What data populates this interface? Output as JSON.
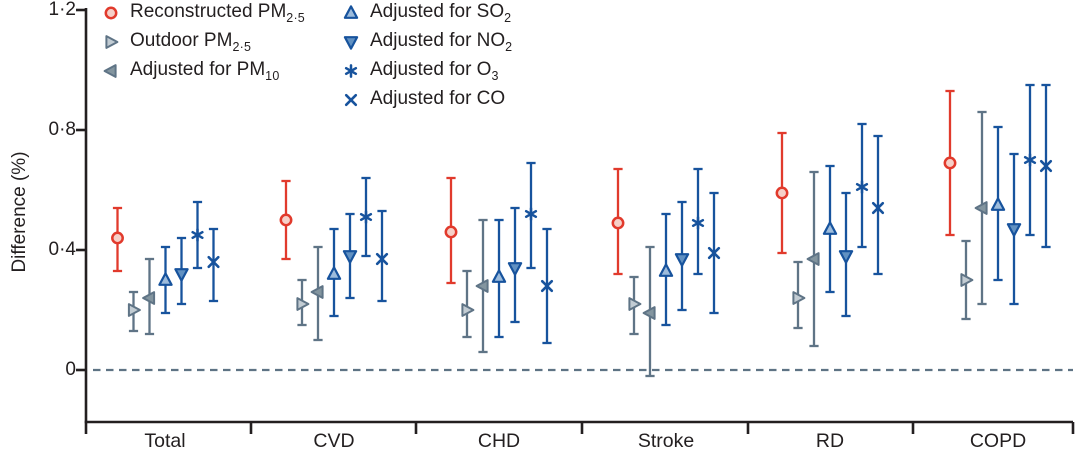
{
  "chart_data": {
    "type": "scatter",
    "subtype": "point-estimates-with-error-bars",
    "title": "",
    "ylabel": "Difference (%)",
    "xlabel": "",
    "ylim": [
      -0.17,
      1.2
    ],
    "grid": "off",
    "legend_position": "top-left-two-columns",
    "zero_line": {
      "value": 0,
      "style": "dashed",
      "color": "#5e7384"
    },
    "axis_color": "#231f20",
    "categories": [
      "Total",
      "CVD",
      "CHD",
      "Stroke",
      "RD",
      "COPD"
    ],
    "yticks": [
      {
        "label": "0",
        "value": 0
      },
      {
        "label": "0·4",
        "value": 0.4
      },
      {
        "label": "0·8",
        "value": 0.8
      },
      {
        "label": "1·2",
        "value": 1.2
      }
    ],
    "series": [
      {
        "name": "Reconstructed PM2·5",
        "label_main": "Reconstructed PM",
        "label_sub": "2·5",
        "marker": "circle-open",
        "color": "#e13a2c",
        "fill": "#f6d0c8",
        "values": [
          0.44,
          0.5,
          0.46,
          0.49,
          0.59,
          0.69
        ],
        "ci_low": [
          0.33,
          0.37,
          0.29,
          0.32,
          0.39,
          0.45
        ],
        "ci_high": [
          0.54,
          0.63,
          0.64,
          0.67,
          0.79,
          0.93
        ]
      },
      {
        "name": "Outdoor PM2·5",
        "label_main": "Outdoor PM",
        "label_sub": "2·5",
        "marker": "triangle-right",
        "color": "#5f7486",
        "fill": "#c2ccd3",
        "values": [
          0.2,
          0.22,
          0.2,
          0.22,
          0.24,
          0.3
        ],
        "ci_low": [
          0.13,
          0.15,
          0.11,
          0.12,
          0.14,
          0.17
        ],
        "ci_high": [
          0.26,
          0.3,
          0.33,
          0.31,
          0.36,
          0.43
        ]
      },
      {
        "name": "Adjusted for PM10",
        "label_main": "Adjusted for PM",
        "label_sub": "10",
        "marker": "triangle-left",
        "color": "#5f7486",
        "fill": "#83959f",
        "values": [
          0.24,
          0.26,
          0.28,
          0.19,
          0.37,
          0.54
        ],
        "ci_low": [
          0.12,
          0.1,
          0.06,
          -0.02,
          0.08,
          0.22
        ],
        "ci_high": [
          0.37,
          0.41,
          0.5,
          0.41,
          0.66,
          0.86
        ]
      },
      {
        "name": "Adjusted for SO2",
        "label_main": "Adjusted for SO",
        "label_sub": "2",
        "marker": "triangle-up",
        "color": "#17539d",
        "fill": "#9dbcdc",
        "values": [
          0.3,
          0.32,
          0.31,
          0.33,
          0.47,
          0.55
        ],
        "ci_low": [
          0.19,
          0.18,
          0.11,
          0.15,
          0.26,
          0.3
        ],
        "ci_high": [
          0.41,
          0.47,
          0.5,
          0.52,
          0.68,
          0.81
        ]
      },
      {
        "name": "Adjusted for NO2",
        "label_main": "Adjusted for NO",
        "label_sub": "2",
        "marker": "triangle-down",
        "color": "#17539d",
        "fill": "#6191c2",
        "values": [
          0.32,
          0.38,
          0.34,
          0.37,
          0.38,
          0.47
        ],
        "ci_low": [
          0.22,
          0.24,
          0.16,
          0.2,
          0.18,
          0.22
        ],
        "ci_high": [
          0.44,
          0.52,
          0.54,
          0.56,
          0.59,
          0.72
        ]
      },
      {
        "name": "Adjusted for O3",
        "label_main": "Adjusted for O",
        "label_sub": "3",
        "marker": "asterisk",
        "color": "#17539d",
        "fill": "none",
        "values": [
          0.45,
          0.51,
          0.52,
          0.49,
          0.61,
          0.7
        ],
        "ci_low": [
          0.34,
          0.38,
          0.34,
          0.32,
          0.41,
          0.45
        ],
        "ci_high": [
          0.56,
          0.64,
          0.69,
          0.67,
          0.82,
          0.95
        ]
      },
      {
        "name": "Adjusted for CO",
        "label_main": "Adjusted for CO",
        "label_sub": "",
        "marker": "x",
        "color": "#17539d",
        "fill": "none",
        "values": [
          0.36,
          0.37,
          0.28,
          0.39,
          0.54,
          0.68
        ],
        "ci_low": [
          0.23,
          0.23,
          0.09,
          0.19,
          0.32,
          0.41
        ],
        "ci_high": [
          0.47,
          0.53,
          0.47,
          0.59,
          0.78,
          0.95
        ]
      }
    ]
  }
}
